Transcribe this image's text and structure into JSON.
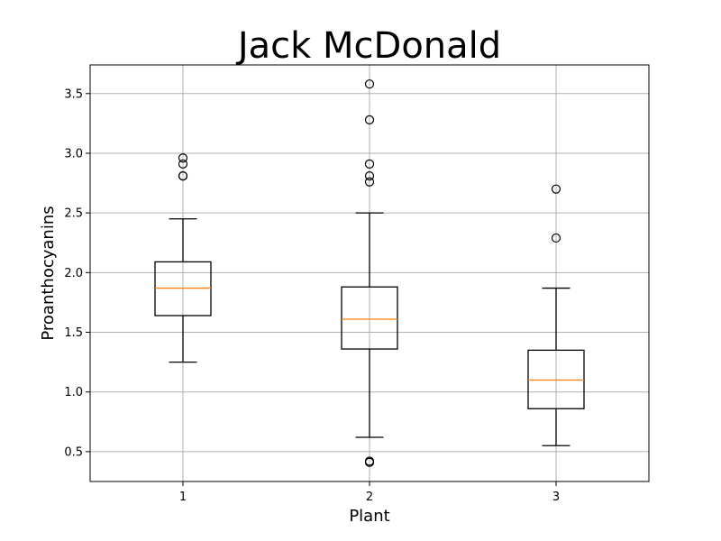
{
  "chart_data": {
    "type": "box",
    "title": "Jack McDonald",
    "xlabel": "Plant",
    "ylabel": "Proanthocyanins",
    "categories": [
      "1",
      "2",
      "3"
    ],
    "ylim": [
      0.25,
      3.74
    ],
    "yticks": [
      0.5,
      1.0,
      1.5,
      2.0,
      2.5,
      3.0,
      3.5
    ],
    "ytick_labels": [
      "0.5",
      "1.0",
      "1.5",
      "2.0",
      "2.5",
      "3.0",
      "3.5"
    ],
    "grid": true,
    "box_color": "#000000",
    "median_color": "#ff7f0e",
    "grid_color": "#b0b0b0",
    "boxes": [
      {
        "category": "1",
        "whisker_low": 1.25,
        "q1": 1.64,
        "median": 1.87,
        "q3": 2.09,
        "whisker_high": 2.45,
        "outliers": [
          2.96,
          2.91,
          2.81,
          2.81
        ]
      },
      {
        "category": "2",
        "whisker_low": 0.62,
        "q1": 1.36,
        "median": 1.61,
        "q3": 1.88,
        "whisker_high": 2.5,
        "outliers": [
          3.58,
          3.28,
          2.91,
          2.81,
          2.76,
          0.42,
          0.41
        ]
      },
      {
        "category": "3",
        "whisker_low": 0.55,
        "q1": 0.86,
        "median": 1.1,
        "q3": 1.35,
        "whisker_high": 1.87,
        "outliers": [
          2.7,
          2.29
        ]
      }
    ]
  }
}
